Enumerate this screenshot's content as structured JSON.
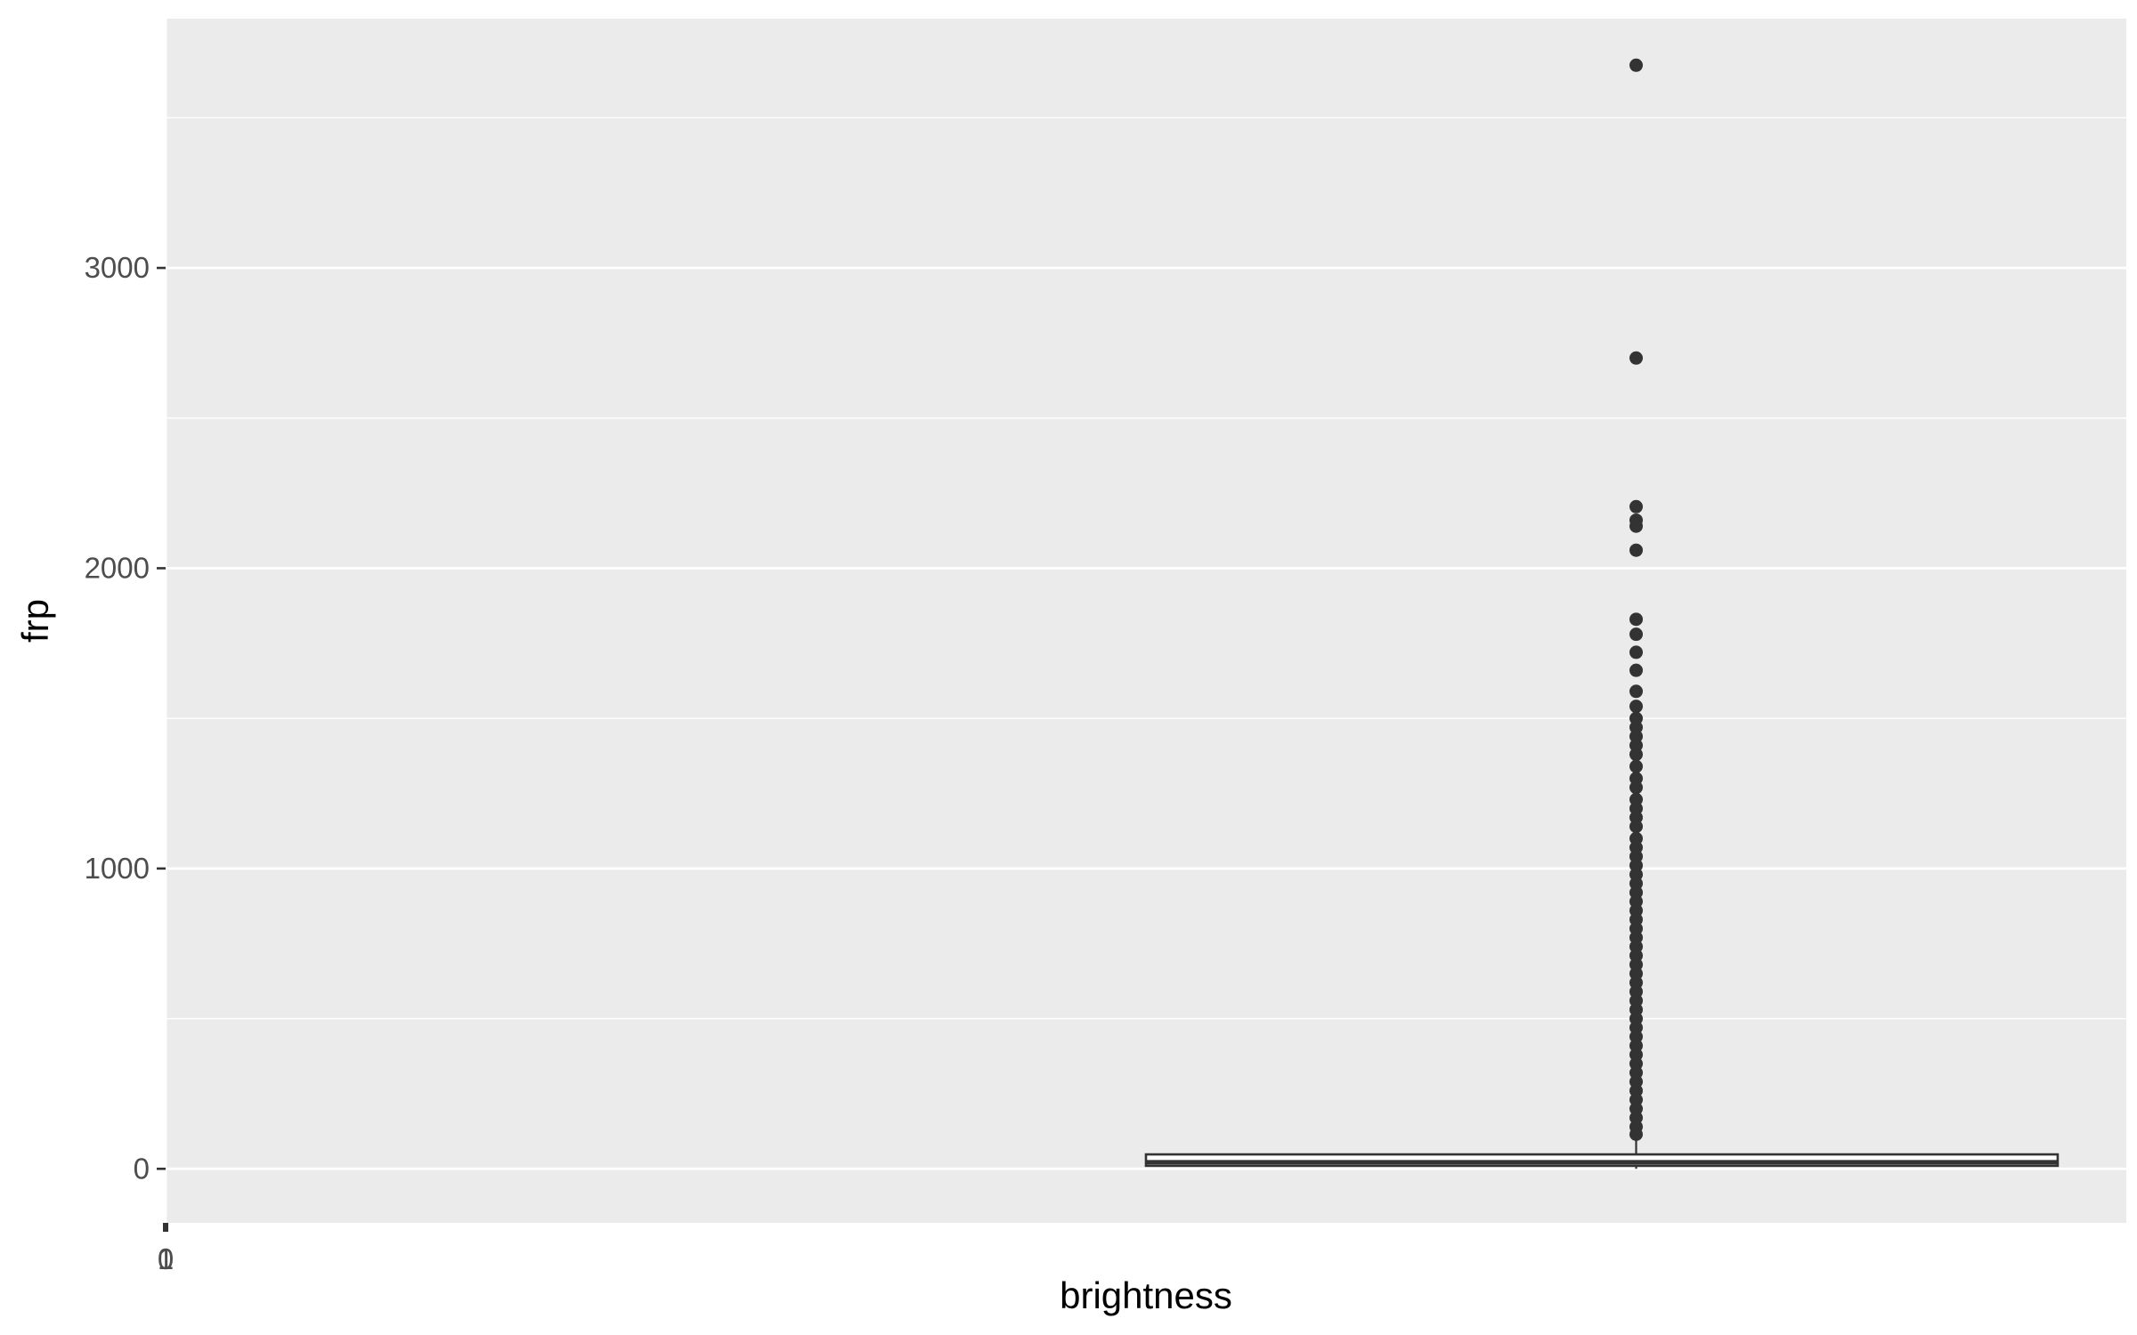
{
  "chart_data": {
    "type": "boxplot",
    "xlabel": "brightness",
    "ylabel": "frp",
    "ylim": [
      -180,
      3830
    ],
    "y_ticks": [
      0,
      1000,
      2000,
      3000
    ],
    "y_minor_ticks": [
      500,
      1500,
      2500,
      3500
    ],
    "x_tick_labels": [
      "0",
      "1"
    ],
    "grid": true,
    "colors": {
      "panel_background": "#ebebeb",
      "grid_line": "#ffffff",
      "box_outline": "#333333",
      "outlier": "#333333",
      "tick_text": "#4d4d4d",
      "axis_title": "#000000"
    },
    "box": {
      "x_left": 1.0,
      "x_right": 1.93,
      "x_center": 1.5,
      "lower_whisker": 0,
      "q1": 10,
      "median": 22,
      "q3": 48,
      "upper_whisker": 105
    },
    "outliers": [
      3675,
      2700,
      2205,
      2160,
      2140,
      2060,
      1830,
      1780,
      1720,
      1660,
      1590,
      1540,
      1500,
      1470,
      1440,
      1410,
      1380,
      1340,
      1300,
      1270,
      1230,
      1200,
      1170,
      1140,
      1100,
      1070,
      1040,
      1010,
      980,
      950,
      920,
      890,
      860,
      830,
      800,
      770,
      740,
      710,
      680,
      650,
      620,
      590,
      560,
      530,
      500,
      470,
      440,
      410,
      380,
      350,
      320,
      290,
      260,
      230,
      200,
      170,
      140,
      115
    ]
  }
}
